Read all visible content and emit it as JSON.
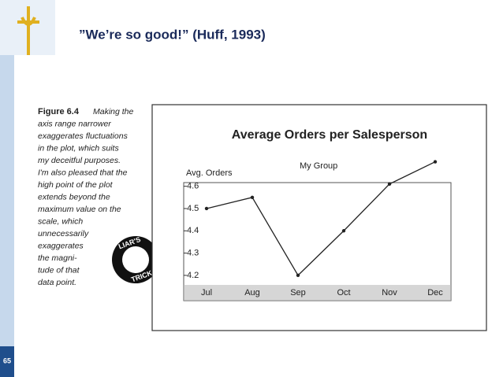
{
  "slide": {
    "title": "”We’re so good!” (Huff, 1993)",
    "page": "65"
  },
  "caption": {
    "label": "Figure 6.4",
    "lines": [
      "Making the",
      "axis range narrower",
      "exaggerates fluctuations",
      "in the plot, which suits",
      "my deceitful purposes.",
      "I'm also pleased that the",
      "high point of the plot",
      "extends beyond the",
      "maximum value on the",
      "scale, which",
      "unnecessarily",
      "exaggerates",
      "the magni-",
      "tude of that",
      "data point."
    ]
  },
  "badge": {
    "top": "LIAR'S",
    "bottom": "TRICK"
  },
  "chart_data": {
    "type": "line",
    "title": "Average Orders per Salesperson",
    "y_label": "Avg. Orders",
    "categories": [
      "Jul",
      "Aug",
      "Sep",
      "Oct",
      "Nov",
      "Dec"
    ],
    "series": [
      {
        "name": "My Group",
        "color": "#222222",
        "values": [
          4.5,
          4.55,
          4.2,
          4.4,
          4.61,
          4.71
        ]
      }
    ],
    "ylim": [
      4.15,
      4.62
    ],
    "yticks": [
      4.2,
      4.3,
      4.4,
      4.5,
      4.6
    ]
  }
}
